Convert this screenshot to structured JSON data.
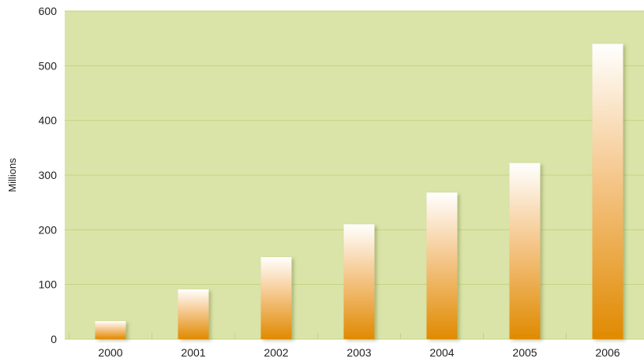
{
  "chart_data": {
    "type": "bar",
    "title": "",
    "xlabel": "",
    "ylabel": "Millions",
    "categories": [
      "2000",
      "2001",
      "2002",
      "2003",
      "2004",
      "2005",
      "2006"
    ],
    "values": [
      33,
      91,
      150,
      210,
      268,
      322,
      540
    ],
    "ylim": [
      0,
      600
    ],
    "yticks": [
      "0",
      "100",
      "200",
      "300",
      "400",
      "500",
      "600"
    ],
    "grid": true,
    "legend": "none",
    "colors": {
      "plot_background": "#dbe4a8",
      "gridline": "#c3d37f",
      "bar_top": "#ffffff",
      "bar_bottom": "#e08a00"
    }
  }
}
